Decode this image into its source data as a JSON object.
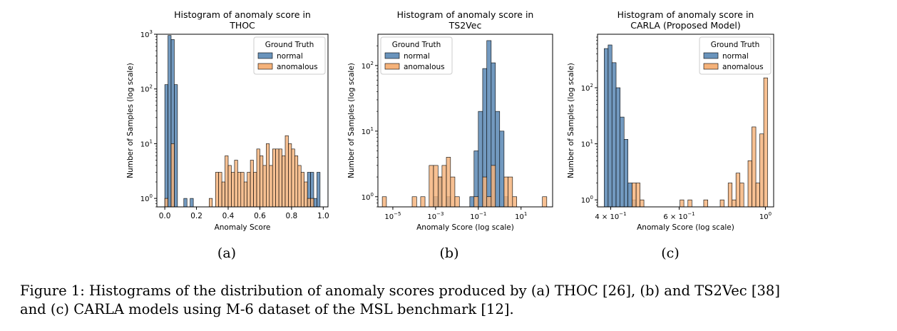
{
  "figure": {
    "subfigure_labels": [
      "(a)",
      "(b)",
      "(c)"
    ],
    "caption_line1": "Figure 1: Histograms of the distribution of anomaly scores produced by (a) THOC [26], (b) and TS2Vec [38]",
    "caption_line2": "and (c) CARLA models using M-6 dataset of the MSL benchmark [12]."
  },
  "colors": {
    "normal": "#6a94bc",
    "anomalous": "#f5b27a",
    "edge": "#000000"
  },
  "chart_data": [
    {
      "type": "bar",
      "title": [
        "Histogram of anomaly score in",
        "THOC"
      ],
      "xlabel": "Anomaly Score",
      "ylabel": "Number of Samples (log scale)",
      "xscale": "linear",
      "yscale": "log",
      "xlim": [
        -0.05,
        1.03
      ],
      "ylim": [
        0.7,
        1000
      ],
      "xticks": [
        {
          "v": 0.0,
          "label": "0.0"
        },
        {
          "v": 0.2,
          "label": "0.2"
        },
        {
          "v": 0.4,
          "label": "0.4"
        },
        {
          "v": 0.6,
          "label": "0.6"
        },
        {
          "v": 0.8,
          "label": "0.8"
        },
        {
          "v": 1.0,
          "label": "1.0"
        }
      ],
      "yticks": [
        {
          "v": 1,
          "base": "10",
          "exp": "0"
        },
        {
          "v": 10,
          "base": "10",
          "exp": "1"
        },
        {
          "v": 100,
          "base": "10",
          "exp": "2"
        },
        {
          "v": 1000,
          "base": "10",
          "exp": "3"
        }
      ],
      "legend": {
        "title": "Ground Truth",
        "entries": [
          "normal",
          "anomalous"
        ],
        "placement": "top-right"
      },
      "series": [
        {
          "name": "normal",
          "bins": [
            [
              0.0,
              0.02,
              120
            ],
            [
              0.02,
              0.04,
              950
            ],
            [
              0.04,
              0.06,
              800
            ],
            [
              0.06,
              0.08,
              120
            ],
            [
              0.12,
              0.14,
              1
            ],
            [
              0.16,
              0.18,
              1
            ],
            [
              0.9,
              0.92,
              3
            ],
            [
              0.92,
              0.94,
              3
            ],
            [
              0.94,
              0.96,
              1
            ],
            [
              0.96,
              0.98,
              3
            ]
          ]
        },
        {
          "name": "anomalous",
          "bins": [
            [
              0.0,
              0.02,
              1
            ],
            [
              0.04,
              0.06,
              10
            ],
            [
              0.28,
              0.3,
              1
            ],
            [
              0.32,
              0.34,
              3
            ],
            [
              0.34,
              0.36,
              3
            ],
            [
              0.36,
              0.38,
              2
            ],
            [
              0.38,
              0.4,
              6
            ],
            [
              0.4,
              0.42,
              4
            ],
            [
              0.42,
              0.44,
              3
            ],
            [
              0.44,
              0.46,
              5
            ],
            [
              0.46,
              0.48,
              3
            ],
            [
              0.48,
              0.5,
              3
            ],
            [
              0.5,
              0.52,
              2
            ],
            [
              0.52,
              0.54,
              3
            ],
            [
              0.54,
              0.56,
              5
            ],
            [
              0.56,
              0.58,
              3
            ],
            [
              0.58,
              0.6,
              8
            ],
            [
              0.6,
              0.62,
              6
            ],
            [
              0.62,
              0.64,
              4
            ],
            [
              0.64,
              0.66,
              10
            ],
            [
              0.66,
              0.68,
              4
            ],
            [
              0.68,
              0.7,
              8
            ],
            [
              0.7,
              0.72,
              8
            ],
            [
              0.72,
              0.74,
              8
            ],
            [
              0.74,
              0.76,
              6
            ],
            [
              0.76,
              0.78,
              14
            ],
            [
              0.78,
              0.8,
              10
            ],
            [
              0.8,
              0.82,
              8
            ],
            [
              0.82,
              0.84,
              6
            ],
            [
              0.84,
              0.86,
              4
            ],
            [
              0.86,
              0.88,
              3
            ],
            [
              0.88,
              0.9,
              2
            ],
            [
              0.9,
              0.92,
              1
            ],
            [
              0.92,
              0.94,
              1
            ]
          ]
        }
      ]
    },
    {
      "type": "bar",
      "title": [
        "Histogram of anomaly score in",
        "TS2Vec"
      ],
      "xlabel": "Anomaly Score (log scale)",
      "ylabel": "Number of Samples (log scale)",
      "xscale": "log",
      "yscale": "log",
      "xlim": [
        2e-06,
        300
      ],
      "ylim": [
        0.7,
        300
      ],
      "xticks": [
        {
          "v": 1e-05,
          "base": "10",
          "exp": "−5"
        },
        {
          "v": 0.001,
          "base": "10",
          "exp": "−3"
        },
        {
          "v": 0.1,
          "base": "10",
          "exp": "−1"
        },
        {
          "v": 10,
          "base": "10",
          "exp": "1"
        }
      ],
      "yticks": [
        {
          "v": 1,
          "base": "10",
          "exp": "0"
        },
        {
          "v": 10,
          "base": "10",
          "exp": "1"
        },
        {
          "v": 100,
          "base": "10",
          "exp": "2"
        }
      ],
      "legend": {
        "title": "Ground Truth",
        "entries": [
          "normal",
          "anomalous"
        ],
        "placement": "top-left"
      },
      "series": [
        {
          "name": "normal",
          "bins": [
            [
              0.0008,
              0.0013,
              1
            ],
            [
              0.0013,
              0.002,
              2
            ],
            [
              0.0032,
              0.005,
              1
            ],
            [
              0.04,
              0.063,
              1
            ],
            [
              0.063,
              0.1,
              5
            ],
            [
              0.1,
              0.16,
              20
            ],
            [
              0.16,
              0.25,
              90
            ],
            [
              0.25,
              0.4,
              240
            ],
            [
              0.4,
              0.63,
              110
            ],
            [
              0.63,
              1.0,
              20
            ],
            [
              1.0,
              1.6,
              10
            ],
            [
              1.6,
              2.5,
              1
            ]
          ]
        },
        {
          "name": "anomalous",
          "bins": [
            [
              3.2e-06,
              5e-06,
              1
            ],
            [
              8e-05,
              0.00013,
              1
            ],
            [
              0.0002,
              0.00032,
              1
            ],
            [
              0.0005,
              0.0008,
              3
            ],
            [
              0.0008,
              0.0013,
              3
            ],
            [
              0.0013,
              0.002,
              2
            ],
            [
              0.002,
              0.0032,
              3
            ],
            [
              0.0032,
              0.005,
              4
            ],
            [
              0.005,
              0.008,
              2
            ],
            [
              0.008,
              0.013,
              1
            ],
            [
              0.063,
              0.1,
              1
            ],
            [
              0.16,
              0.25,
              2
            ],
            [
              0.25,
              0.4,
              1
            ],
            [
              0.4,
              0.63,
              3
            ],
            [
              1.6,
              2.5,
              2
            ],
            [
              2.5,
              4.0,
              2
            ],
            [
              4.0,
              6.3,
              1
            ],
            [
              100,
              160,
              1
            ]
          ]
        }
      ]
    },
    {
      "type": "bar",
      "title": [
        "Histogram of anomaly score in",
        "CARLA (Proposed Model)"
      ],
      "xlabel": "Anomaly Score (log scale)",
      "ylabel": "Number of Samples (log scale)",
      "xscale": "log",
      "yscale": "log",
      "xlim": [
        0.37,
        1.05
      ],
      "ylim": [
        0.75,
        900
      ],
      "xticks": [
        {
          "v": 0.4,
          "base": "4 × 10",
          "exp": "−1"
        },
        {
          "v": 0.6,
          "base": "6 × 10",
          "exp": "−1"
        },
        {
          "v": 1.0,
          "base": "10",
          "exp": "0"
        }
      ],
      "yticks": [
        {
          "v": 1,
          "base": "10",
          "exp": "0"
        },
        {
          "v": 10,
          "base": "10",
          "exp": "1"
        },
        {
          "v": 100,
          "base": "10",
          "exp": "2"
        }
      ],
      "legend": {
        "title": "Ground Truth",
        "entries": [
          "normal",
          "anomalous"
        ],
        "placement": "top-right"
      },
      "series": [
        {
          "name": "normal",
          "bins": [
            [
              0.385,
              0.394,
              500
            ],
            [
              0.394,
              0.403,
              580
            ],
            [
              0.403,
              0.413,
              280
            ],
            [
              0.413,
              0.423,
              100
            ],
            [
              0.423,
              0.433,
              30
            ],
            [
              0.433,
              0.443,
              12
            ],
            [
              0.443,
              0.454,
              2
            ],
            [
              0.454,
              0.465,
              1
            ]
          ]
        },
        {
          "name": "anomalous",
          "bins": [
            [
              0.454,
              0.465,
              2
            ],
            [
              0.465,
              0.476,
              2
            ],
            [
              0.476,
              0.487,
              1
            ],
            [
              0.603,
              0.617,
              1
            ],
            [
              0.632,
              0.647,
              1
            ],
            [
              0.694,
              0.711,
              1
            ],
            [
              0.765,
              0.783,
              1
            ],
            [
              0.802,
              0.821,
              2
            ],
            [
              0.821,
              0.84,
              1
            ],
            [
              0.84,
              0.86,
              3
            ],
            [
              0.86,
              0.88,
              2
            ],
            [
              0.902,
              0.923,
              5
            ],
            [
              0.923,
              0.945,
              20
            ],
            [
              0.945,
              0.967,
              2
            ],
            [
              0.967,
              0.99,
              15
            ],
            [
              0.99,
              1.013,
              150
            ]
          ]
        }
      ]
    }
  ]
}
